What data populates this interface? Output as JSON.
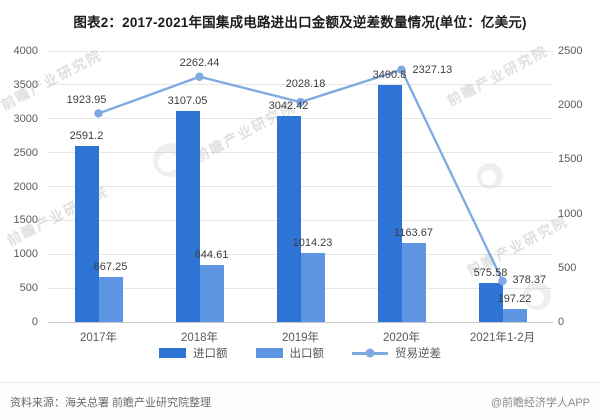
{
  "title": "图表2：2017-2021年国集成电路进出口金额及逆差数量情况(单位：亿美元)",
  "watermark": {
    "text": "前瞻产业研究院"
  },
  "footer": {
    "source": "资料来源：海关总署 前瞻产业研究院整理",
    "credit": "@前瞻经济学人APP"
  },
  "chart_data": {
    "type": "bar",
    "subtype": "grouped-bars-with-line",
    "title": "图表2：2017-2021年国集成电路进出口金额及逆差数量情况(单位：亿美元)",
    "categories": [
      "2017年",
      "2018年",
      "2019年",
      "2020年",
      "2021年1-2月"
    ],
    "series": [
      {
        "name": "进口额",
        "type": "bar",
        "axis": "left",
        "color": "#2e74d5",
        "values": [
          2591.2,
          3107.05,
          3042.42,
          3490.8,
          575.58
        ]
      },
      {
        "name": "出口额",
        "type": "bar",
        "axis": "left",
        "color": "#5d95e2",
        "values": [
          667.25,
          844.61,
          1014.23,
          1163.67,
          197.22
        ]
      },
      {
        "name": "贸易逆差",
        "type": "line",
        "axis": "right",
        "color": "#7ea9e1",
        "values": [
          1923.95,
          2262.44,
          2028.18,
          2327.13,
          378.37
        ]
      }
    ],
    "left_axis": {
      "min": 0,
      "max": 4000,
      "ticks": [
        "0",
        "500",
        "1000",
        "1500",
        "2000",
        "2500",
        "3000",
        "3500",
        "4000"
      ]
    },
    "right_axis": {
      "min": 0,
      "max": 2500,
      "ticks": [
        "0",
        "500",
        "1000",
        "1500",
        "2000",
        "2500"
      ]
    },
    "grid": "horizontal",
    "legend_position": "bottom"
  }
}
